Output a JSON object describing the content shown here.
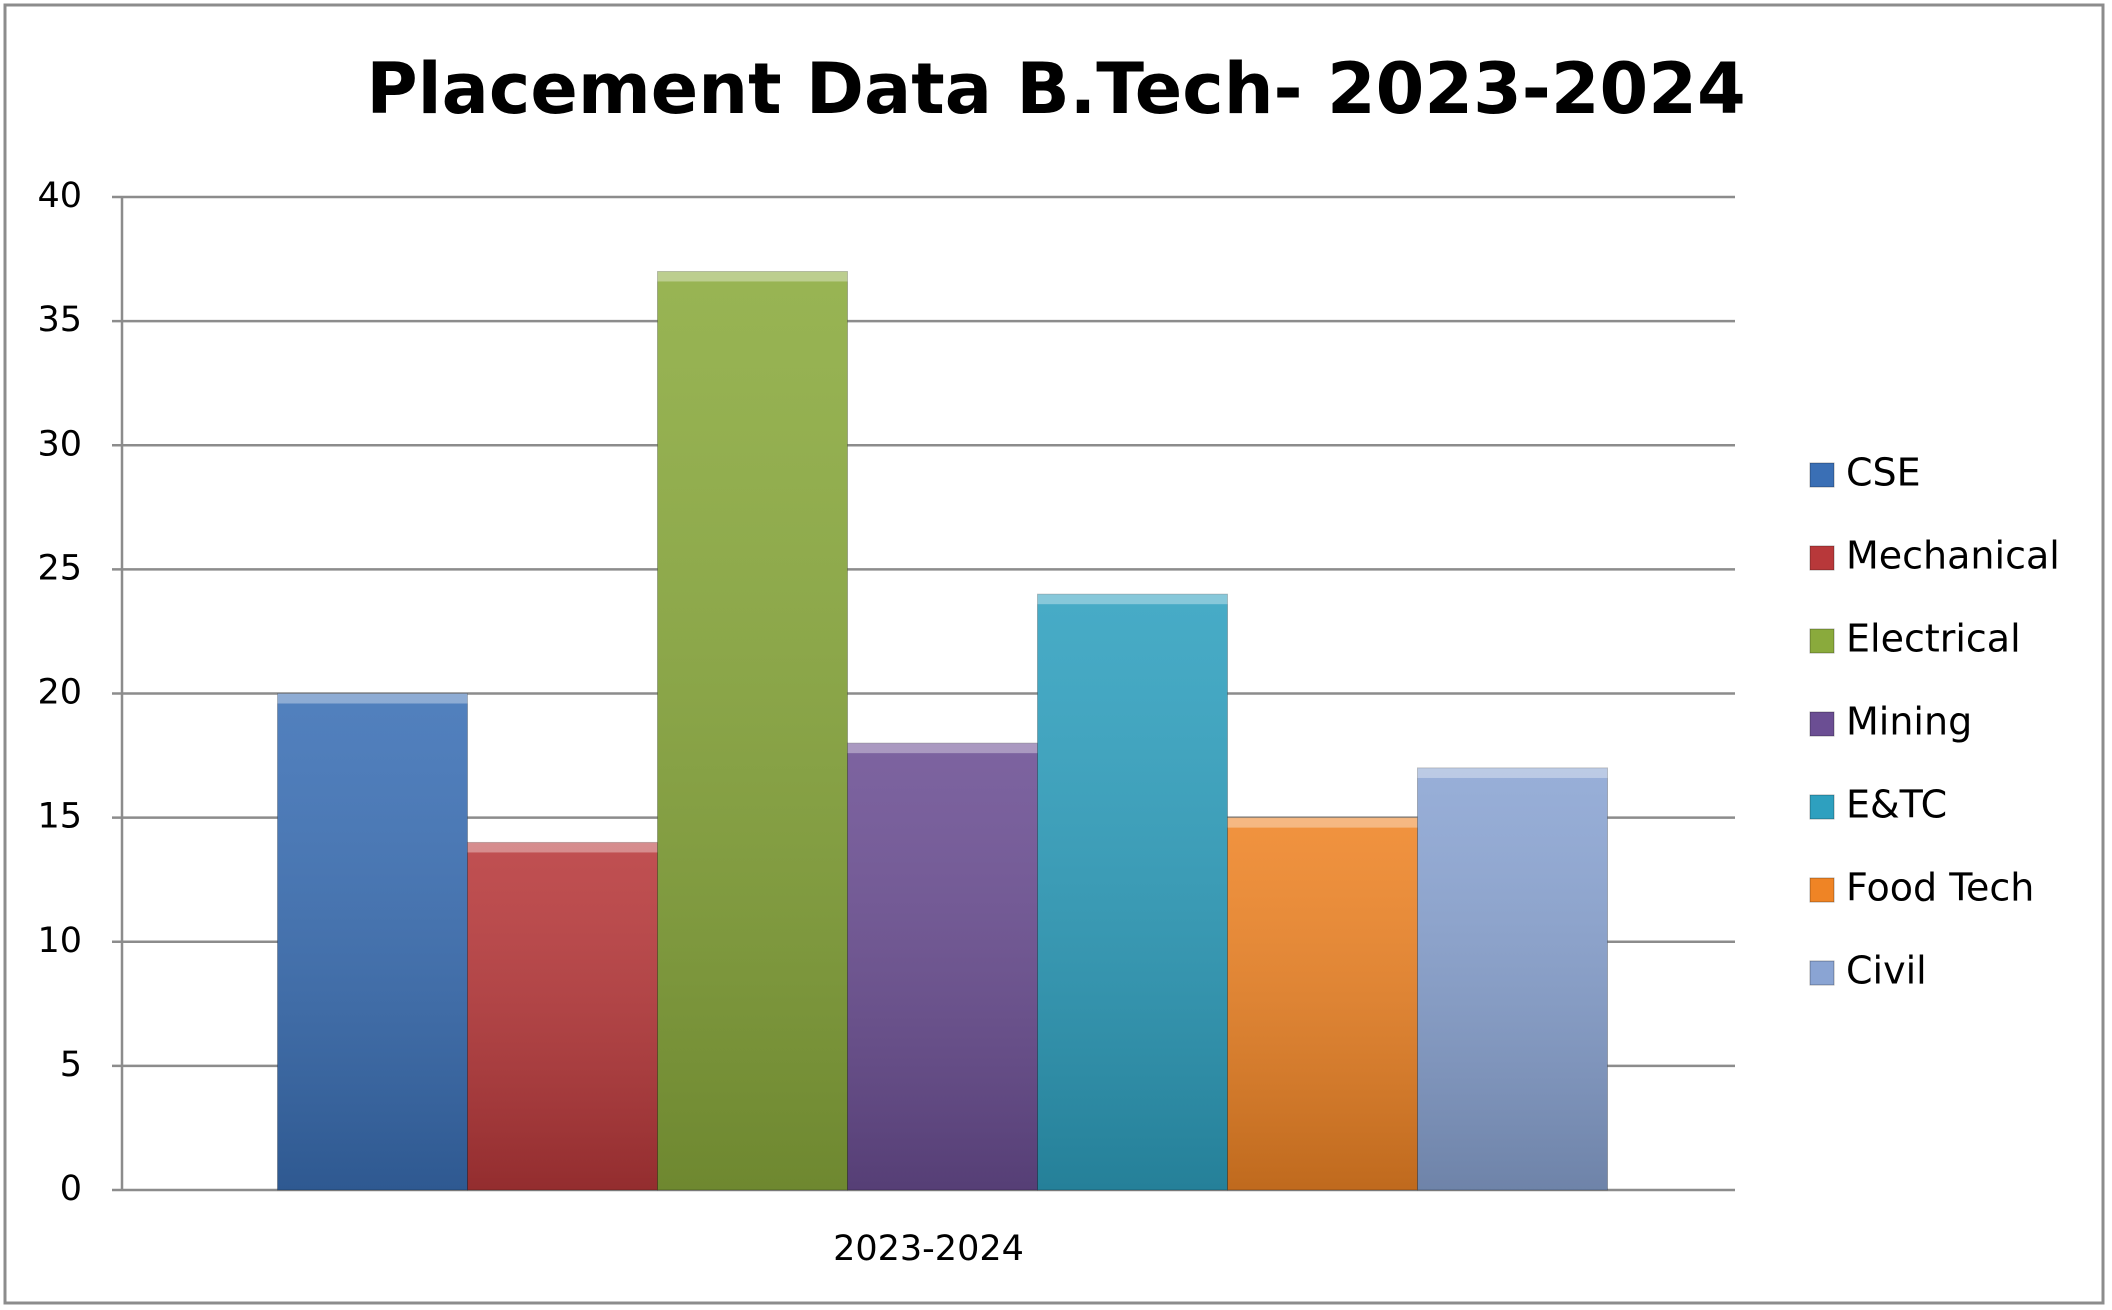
{
  "chart_data": {
    "type": "bar",
    "title": "Placement Data B.Tech-  2023-2024",
    "categories": [
      "2023-2024"
    ],
    "series": [
      {
        "name": "CSE",
        "color": "#3a6fb5",
        "values": [
          20
        ]
      },
      {
        "name": "Mechanical",
        "color": "#b8383a",
        "values": [
          14
        ]
      },
      {
        "name": "Electrical",
        "color": "#8aaa3c",
        "values": [
          37
        ]
      },
      {
        "name": "Mining",
        "color": "#6b4e93",
        "values": [
          18
        ]
      },
      {
        "name": "E&TC",
        "color": "#2ea0bf",
        "values": [
          24
        ]
      },
      {
        "name": "Food Tech",
        "color": "#ef8425",
        "values": [
          15
        ]
      },
      {
        "name": "Civil",
        "color": "#8aa4d3",
        "values": [
          17
        ]
      }
    ],
    "ylim": [
      0,
      40
    ],
    "yticks": [
      0,
      5,
      10,
      15,
      20,
      25,
      30,
      35,
      40
    ],
    "grid": true,
    "legend": "right"
  }
}
